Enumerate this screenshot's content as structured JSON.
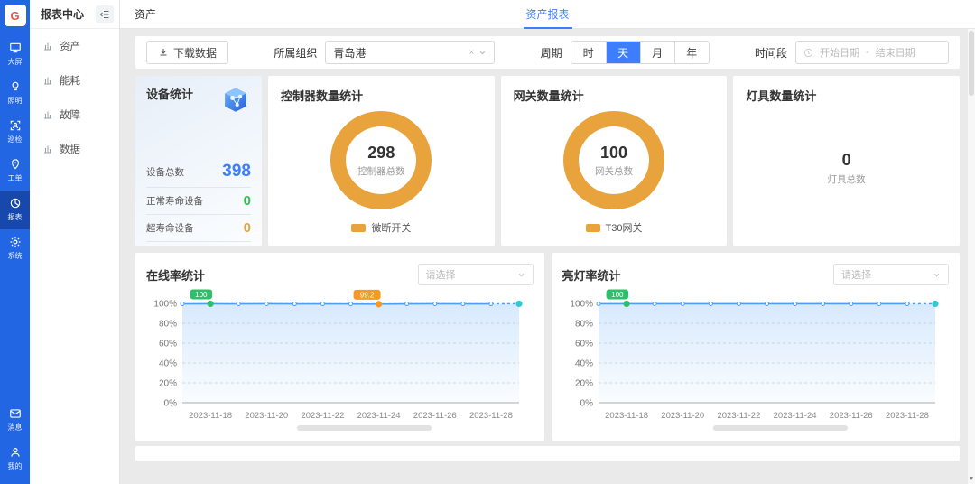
{
  "app": {
    "logo_text": "G",
    "sidebar": {
      "items": [
        {
          "label": "大屏",
          "icon": "monitor-icon"
        },
        {
          "label": "照明",
          "icon": "bulb-icon"
        },
        {
          "label": "巡检",
          "icon": "scan-icon"
        },
        {
          "label": "工单",
          "icon": "workorder-icon"
        },
        {
          "label": "报表",
          "icon": "report-icon",
          "active": true
        },
        {
          "label": "系统",
          "icon": "gear-icon"
        }
      ],
      "bottom_items": [
        {
          "label": "消息",
          "icon": "envelope-icon"
        },
        {
          "label": "我的",
          "icon": "user-icon"
        }
      ]
    },
    "submenu": {
      "title": "报表中心",
      "items": [
        {
          "label": "资产"
        },
        {
          "label": "能耗"
        },
        {
          "label": "故障"
        },
        {
          "label": "数据"
        }
      ]
    },
    "topbar": {
      "title": "资产",
      "active_tab": "资产报表"
    }
  },
  "toolbar": {
    "download_label": "下载数据",
    "org_label": "所属组织",
    "org_value": "青岛港",
    "period_label": "周期",
    "period_options": [
      "时",
      "天",
      "月",
      "年"
    ],
    "period_selected": "天",
    "range_label": "时间段",
    "start_placeholder": "开始日期",
    "range_separator": "-",
    "end_placeholder": "结束日期"
  },
  "stats": {
    "device": {
      "title": "设备统计",
      "rows": [
        {
          "label": "设备总数",
          "value": "398",
          "color": "#3D7EFF"
        },
        {
          "label": "正常寿命设备",
          "value": "0",
          "color": "#2FBF4B"
        },
        {
          "label": "超寿命设备",
          "value": "0",
          "color": "#E8A33C"
        }
      ]
    },
    "controller": {
      "title": "控制器数量统计",
      "total": "298",
      "total_label": "控制器总数",
      "legend": "微断开关",
      "color": "#E8A33C"
    },
    "gateway": {
      "title": "网关数量统计",
      "total": "100",
      "total_label": "网关总数",
      "legend": "T30网关",
      "color": "#E8A33C"
    },
    "lamp": {
      "title": "灯具数量统计",
      "total": "0",
      "total_label": "灯具总数"
    }
  },
  "chart_data": [
    {
      "type": "line",
      "title": "在线率统计",
      "select_placeholder": "请选择",
      "x": [
        "2023-11-17",
        "2023-11-18",
        "2023-11-19",
        "2023-11-20",
        "2023-11-21",
        "2023-11-22",
        "2023-11-23",
        "2023-11-24",
        "2023-11-25",
        "2023-11-26",
        "2023-11-27",
        "2023-11-28",
        "2023-11-29"
      ],
      "x_tick_labels": [
        "2023-11-18",
        "2023-11-20",
        "2023-11-22",
        "2023-11-24",
        "2023-11-26",
        "2023-11-28"
      ],
      "x_tick_indices": [
        1,
        3,
        5,
        7,
        9,
        11
      ],
      "values": [
        99.5,
        99.6,
        99.5,
        99.6,
        99.5,
        99.5,
        99.4,
        99.2,
        99.5,
        99.6,
        99.5,
        99.5,
        99.6
      ],
      "ylim": [
        0,
        100
      ],
      "y_tick_labels": [
        "100%",
        "80%",
        "60%",
        "40%",
        "20%",
        "0%"
      ],
      "markers": [
        {
          "index": 1,
          "color": "#2FBF6B",
          "badge": "100"
        },
        {
          "index": 7,
          "color": "#F59A23",
          "badge": "99.2"
        },
        {
          "index": 12,
          "color": "#35C8D0",
          "badge": null
        }
      ],
      "line_color": "#4D9EF8",
      "grid": true,
      "legend_position": "none"
    },
    {
      "type": "line",
      "title": "亮灯率统计",
      "select_placeholder": "请选择",
      "x": [
        "2023-11-17",
        "2023-11-18",
        "2023-11-19",
        "2023-11-20",
        "2023-11-21",
        "2023-11-22",
        "2023-11-23",
        "2023-11-24",
        "2023-11-25",
        "2023-11-26",
        "2023-11-27",
        "2023-11-28",
        "2023-11-29"
      ],
      "x_tick_labels": [
        "2023-11-18",
        "2023-11-20",
        "2023-11-22",
        "2023-11-24",
        "2023-11-26",
        "2023-11-28"
      ],
      "x_tick_indices": [
        1,
        3,
        5,
        7,
        9,
        11
      ],
      "values": [
        99.6,
        99.6,
        99.6,
        99.6,
        99.6,
        99.6,
        99.6,
        99.6,
        99.6,
        99.6,
        99.6,
        99.6,
        99.6
      ],
      "ylim": [
        0,
        100
      ],
      "y_tick_labels": [
        "100%",
        "80%",
        "60%",
        "40%",
        "20%",
        "0%"
      ],
      "markers": [
        {
          "index": 1,
          "color": "#2FBF6B",
          "badge": "100"
        },
        {
          "index": 12,
          "color": "#35C8D0",
          "badge": null
        }
      ],
      "line_color": "#4D9EF8",
      "grid": true,
      "legend_position": "none"
    }
  ]
}
